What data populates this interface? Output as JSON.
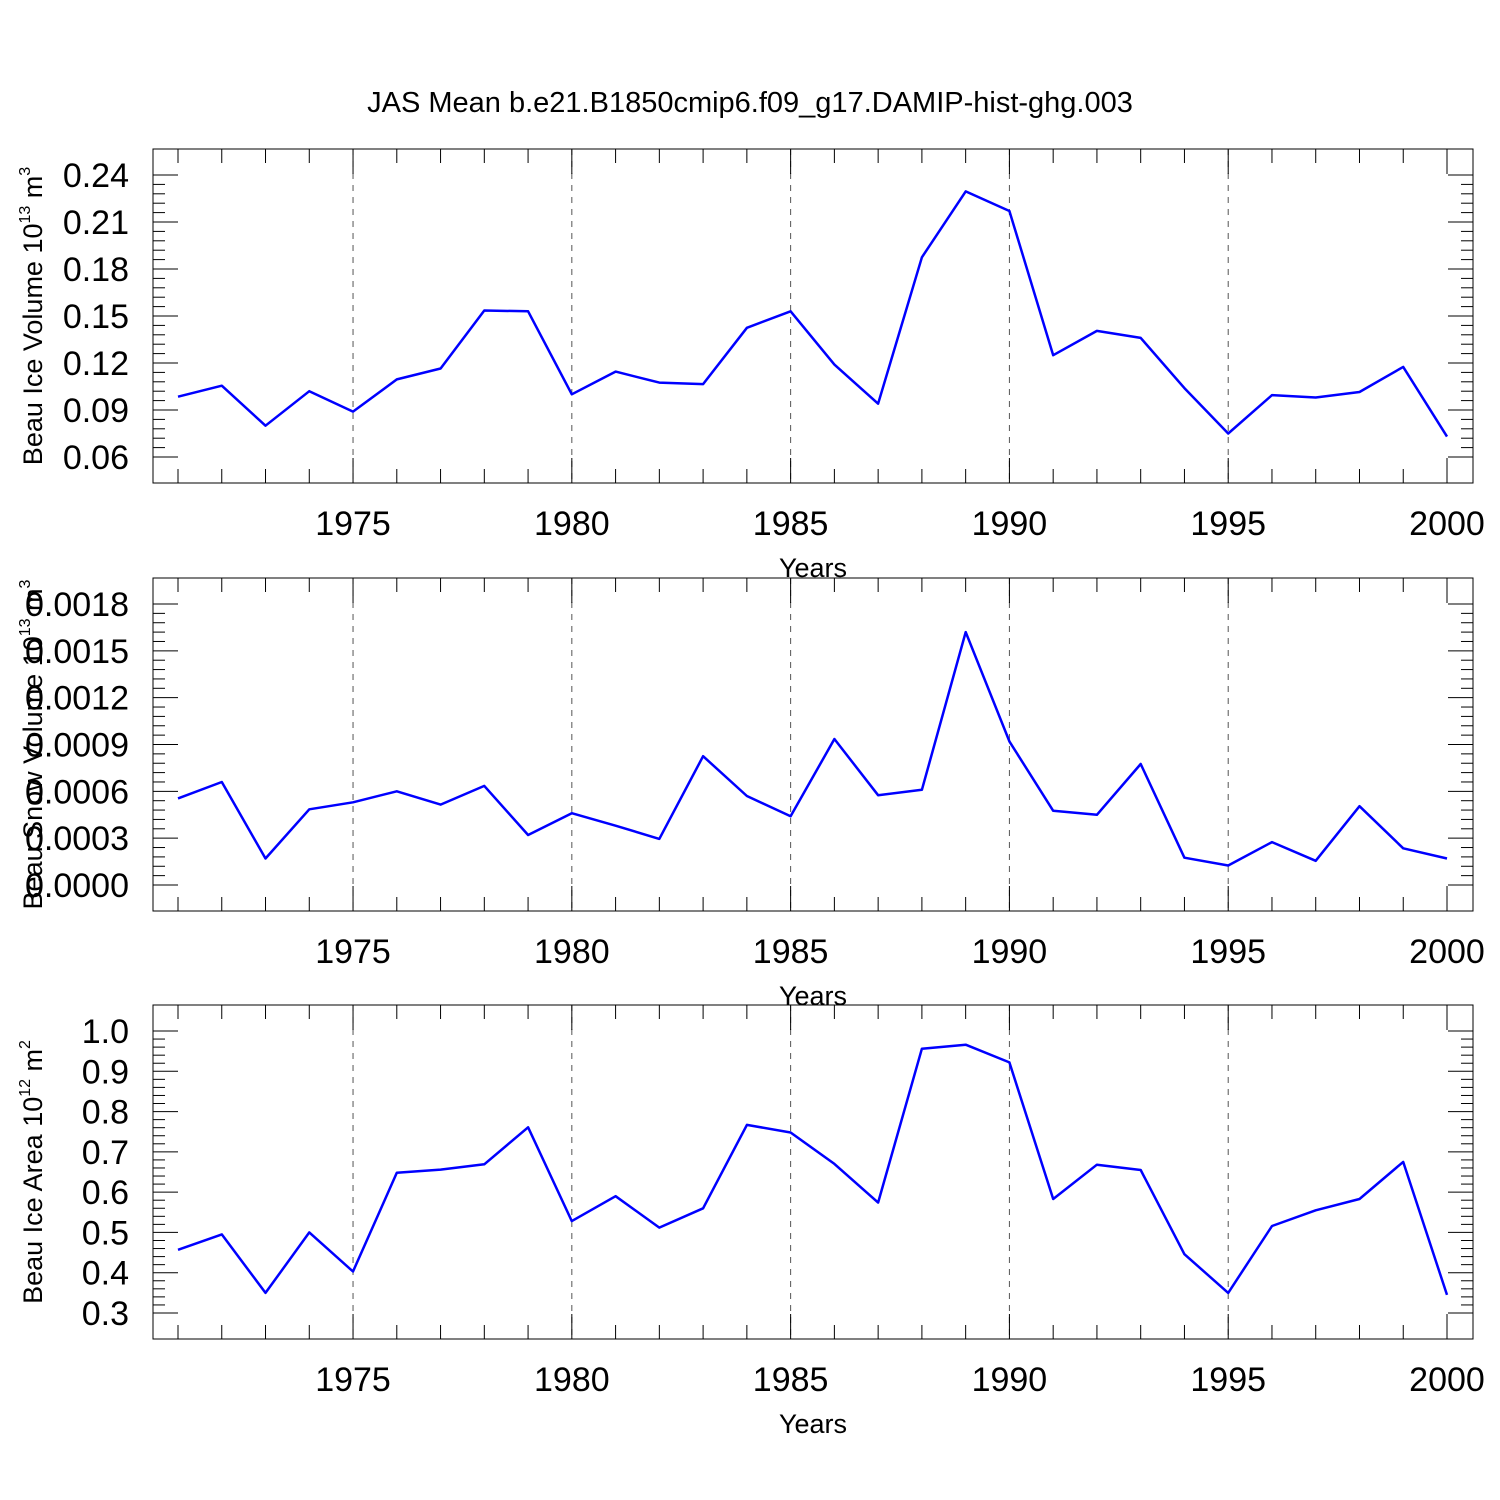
{
  "figure_title": "JAS Mean b.e21.B1850cmip6.f09_g17.DAMIP-hist-ghg.003",
  "line_color": "#0000ff",
  "chart_data": [
    {
      "type": "line",
      "xlabel": "Years",
      "ylabel": {
        "prefix": "Beau Ice Volume 10",
        "exp": "13",
        "unit": " m",
        "unit_exp": "3"
      },
      "xlim": [
        1971,
        2000
      ],
      "ylim": [
        0.06,
        0.24
      ],
      "xticks": [
        "1975",
        "1980",
        "1985",
        "1990",
        "1995",
        "2000"
      ],
      "yticks": [
        "0.06",
        "0.09",
        "0.12",
        "0.15",
        "0.18",
        "0.21",
        "0.24"
      ],
      "grid": "vertical dashed at labeled years",
      "x": [
        1971,
        1972,
        1973,
        1974,
        1975,
        1976,
        1977,
        1978,
        1979,
        1980,
        1981,
        1982,
        1983,
        1984,
        1985,
        1986,
        1987,
        1988,
        1989,
        1990,
        1991,
        1992,
        1993,
        1994,
        1995,
        1996,
        1997,
        1998,
        1999,
        2000
      ],
      "values": [
        0.0985,
        0.1055,
        0.08,
        0.102,
        0.089,
        0.1095,
        0.1165,
        0.1535,
        0.153,
        0.1,
        0.1145,
        0.1075,
        0.1065,
        0.1425,
        0.153,
        0.119,
        0.094,
        0.1875,
        0.2295,
        0.217,
        0.125,
        0.1405,
        0.136,
        0.104,
        0.075,
        0.0995,
        0.098,
        0.1015,
        0.1175,
        0.073
      ]
    },
    {
      "type": "line",
      "xlabel": "Years",
      "ylabel": {
        "prefix": "Beau Snow Volume 10",
        "exp": "13",
        "unit": " m",
        "unit_exp": "3"
      },
      "xlim": [
        1971,
        2000
      ],
      "ylim": [
        0.0,
        0.0018
      ],
      "xticks": [
        "1975",
        "1980",
        "1985",
        "1990",
        "1995",
        "2000"
      ],
      "yticks": [
        "0.0000",
        "0.0003",
        "0.0006",
        "0.0009",
        "0.0012",
        "0.0015",
        "0.0018"
      ],
      "grid": "vertical dashed at labeled years",
      "x": [
        1971,
        1972,
        1973,
        1974,
        1975,
        1976,
        1977,
        1978,
        1979,
        1980,
        1981,
        1982,
        1983,
        1984,
        1985,
        1986,
        1987,
        1988,
        1989,
        1990,
        1991,
        1992,
        1993,
        1994,
        1995,
        1996,
        1997,
        1998,
        1999,
        2000
      ],
      "values": [
        0.000555,
        0.00066,
        0.00017,
        0.000485,
        0.00053,
        0.0006,
        0.000515,
        0.000635,
        0.00032,
        0.00046,
        0.00038,
        0.000295,
        0.000825,
        0.00057,
        0.00044,
        0.000935,
        0.000575,
        0.00061,
        0.00162,
        0.00092,
        0.000475,
        0.00045,
        0.000775,
        0.000175,
        0.000125,
        0.000275,
        0.000155,
        0.000505,
        0.000235,
        0.00017
      ]
    },
    {
      "type": "line",
      "xlabel": "Years",
      "ylabel": {
        "prefix": "Beau Ice Area 10",
        "exp": "12",
        "unit": " m",
        "unit_exp": "2"
      },
      "xlim": [
        1971,
        2000
      ],
      "ylim": [
        0.3,
        1.0
      ],
      "xticks": [
        "1975",
        "1980",
        "1985",
        "1990",
        "1995",
        "2000"
      ],
      "yticks": [
        "0.3",
        "0.4",
        "0.5",
        "0.6",
        "0.7",
        "0.8",
        "0.9",
        "1.0"
      ],
      "grid": "vertical dashed at labeled years",
      "x": [
        1971,
        1972,
        1973,
        1974,
        1975,
        1976,
        1977,
        1978,
        1979,
        1980,
        1981,
        1982,
        1983,
        1984,
        1985,
        1986,
        1987,
        1988,
        1989,
        1990,
        1991,
        1992,
        1993,
        1994,
        1995,
        1996,
        1997,
        1998,
        1999,
        2000
      ],
      "values": [
        0.457,
        0.495,
        0.35,
        0.5,
        0.403,
        0.648,
        0.656,
        0.669,
        0.761,
        0.528,
        0.59,
        0.512,
        0.56,
        0.767,
        0.748,
        0.67,
        0.574,
        0.956,
        0.966,
        0.922,
        0.583,
        0.668,
        0.655,
        0.446,
        0.35,
        0.516,
        0.555,
        0.583,
        0.675,
        0.345
      ]
    }
  ]
}
